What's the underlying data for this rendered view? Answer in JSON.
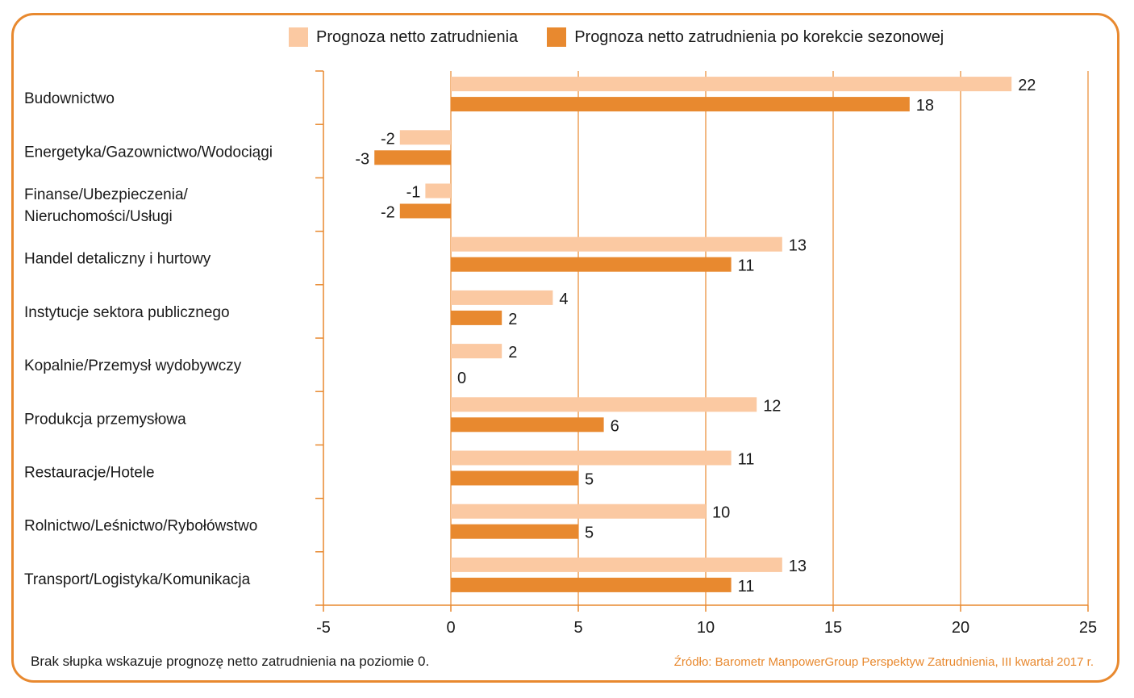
{
  "colors": {
    "frame": "#e8892f",
    "series1": "#fbc9a2",
    "series2": "#e8892f",
    "axis": "#e8892f"
  },
  "legend": {
    "series1": "Prognoza netto zatrudnienia",
    "series2": "Prognoza netto zatrudnienia po korekcie sezonowej"
  },
  "footer": {
    "note": "Brak słupka wskazuje prognozę netto zatrudnienia na poziomie 0.",
    "source": "Źródło: Barometr ManpowerGroup Perspektyw Zatrudnienia, III kwartał 2017 r."
  },
  "chart_data": {
    "type": "bar",
    "orientation": "horizontal",
    "categories": [
      [
        "Budownictwo"
      ],
      [
        "Energetyka/Gazownictwo/Wodociągi"
      ],
      [
        "Finanse/Ubezpieczenia/",
        "Nieruchomości/Usługi"
      ],
      [
        "Handel detaliczny i hurtowy"
      ],
      [
        "Instytucje sektora publicznego"
      ],
      [
        "Kopalnie/Przemysł wydobywczy"
      ],
      [
        "Produkcja przemysłowa"
      ],
      [
        "Restauracje/Hotele"
      ],
      [
        "Rolnictwo/Leśnictwo/Rybołówstwo"
      ],
      [
        "Transport/Logistyka/Komunikacja"
      ]
    ],
    "series": [
      {
        "name": "Prognoza netto zatrudnienia",
        "values": [
          22,
          -2,
          -1,
          13,
          4,
          2,
          12,
          11,
          10,
          13
        ]
      },
      {
        "name": "Prognoza netto zatrudnienia po korekcie sezonowej",
        "values": [
          18,
          -3,
          -2,
          11,
          2,
          0,
          6,
          5,
          5,
          11
        ]
      }
    ],
    "xlim": [
      -5,
      25
    ],
    "xticks": [
      -5,
      0,
      5,
      10,
      15,
      20,
      25
    ],
    "grid": true,
    "legend_position": "top"
  }
}
